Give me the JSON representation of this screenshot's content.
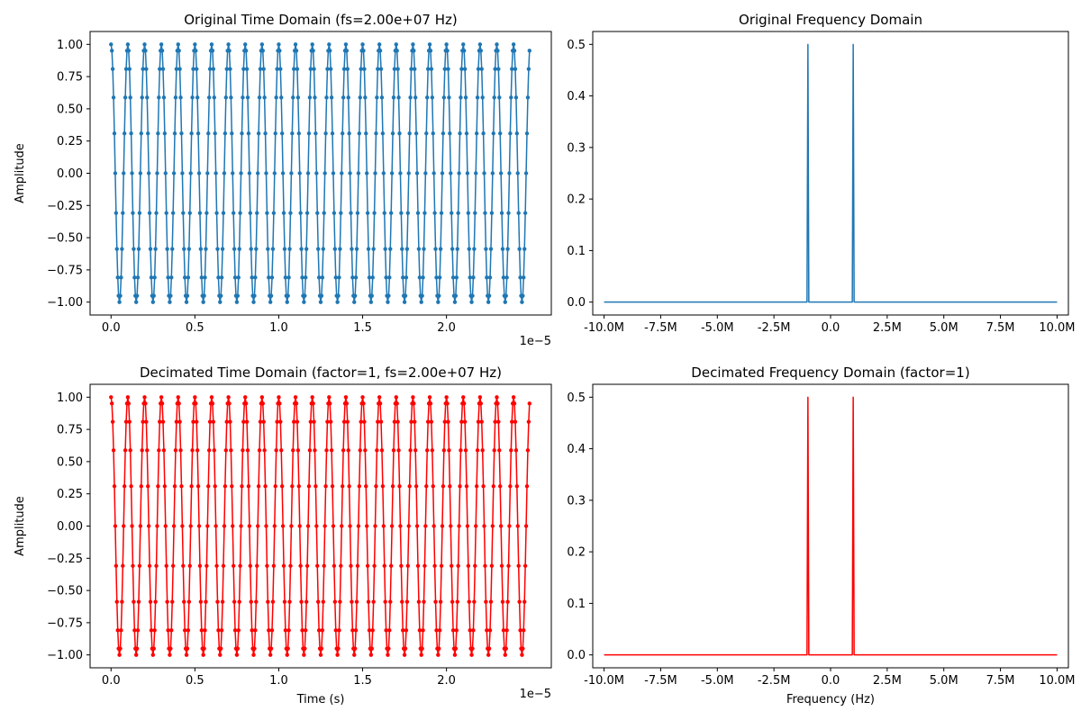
{
  "colors": {
    "original": "#1f77b4",
    "decimated": "#ff0000"
  },
  "chart_data": [
    {
      "id": "original-time",
      "type": "line",
      "title": "Original Time Domain (fs=2.00e+07 Hz)",
      "xlabel": "",
      "ylabel": "Amplitude",
      "x_offset_label": "1e−5",
      "xlim": [
        -0.125,
        2.625
      ],
      "ylim": [
        -1.1,
        1.1
      ],
      "x_ticks": [
        0.0,
        0.5,
        1.0,
        1.5,
        2.0
      ],
      "x_tick_labels": [
        "0.0",
        "0.5",
        "1.0",
        "1.5",
        "2.0"
      ],
      "y_ticks": [
        -1.0,
        -0.75,
        -0.5,
        -0.25,
        0.0,
        0.25,
        0.5,
        0.75,
        1.0
      ],
      "y_tick_labels": [
        "−1.00",
        "−0.75",
        "−0.50",
        "−0.25",
        "0.00",
        "0.25",
        "0.50",
        "0.75",
        "1.00"
      ],
      "grid": false,
      "series": [
        {
          "kind": "sampled-cosine",
          "color_key": "original",
          "markers": true,
          "frequency_hz": 1000000,
          "sample_rate_hz": 20000000,
          "num_samples": 500,
          "amplitude": 1.0,
          "x_scale": 1e-05
        }
      ]
    },
    {
      "id": "original-frequency",
      "type": "line",
      "title": "Original Frequency Domain",
      "xlabel": "",
      "ylabel": "",
      "xlim": [
        -10.5,
        10.5
      ],
      "ylim": [
        -0.025,
        0.525
      ],
      "x_ticks": [
        -10.0,
        -7.5,
        -5.0,
        -2.5,
        0.0,
        2.5,
        5.0,
        7.5,
        10.0
      ],
      "x_tick_labels": [
        "-10.0M",
        "-7.5M",
        "-5.0M",
        "-2.5M",
        "0.0",
        "2.5M",
        "5.0M",
        "7.5M",
        "10.0M"
      ],
      "y_ticks": [
        0.0,
        0.1,
        0.2,
        0.3,
        0.4,
        0.5
      ],
      "y_tick_labels": [
        "0.0",
        "0.1",
        "0.2",
        "0.3",
        "0.4",
        "0.5"
      ],
      "grid": false,
      "series": [
        {
          "kind": "spectrum",
          "color_key": "original",
          "markers": false,
          "x": [
            -10.0,
            -1.04,
            -1.0,
            -0.96,
            0.96,
            1.0,
            1.04,
            10.0
          ],
          "y": [
            0.0,
            0.0,
            0.5,
            0.0,
            0.0,
            0.5,
            0.0,
            0.0
          ]
        }
      ]
    },
    {
      "id": "decimated-time",
      "type": "line",
      "title": "Decimated Time Domain (factor=1, fs=2.00e+07 Hz)",
      "xlabel": "Time (s)",
      "ylabel": "Amplitude",
      "x_offset_label": "1e−5",
      "xlim": [
        -0.125,
        2.625
      ],
      "ylim": [
        -1.1,
        1.1
      ],
      "x_ticks": [
        0.0,
        0.5,
        1.0,
        1.5,
        2.0
      ],
      "x_tick_labels": [
        "0.0",
        "0.5",
        "1.0",
        "1.5",
        "2.0"
      ],
      "y_ticks": [
        -1.0,
        -0.75,
        -0.5,
        -0.25,
        0.0,
        0.25,
        0.5,
        0.75,
        1.0
      ],
      "y_tick_labels": [
        "−1.00",
        "−0.75",
        "−0.50",
        "−0.25",
        "0.00",
        "0.25",
        "0.50",
        "0.75",
        "1.00"
      ],
      "grid": false,
      "series": [
        {
          "kind": "sampled-cosine",
          "color_key": "decimated",
          "markers": true,
          "frequency_hz": 1000000,
          "sample_rate_hz": 20000000,
          "num_samples": 500,
          "amplitude": 1.0,
          "x_scale": 1e-05
        }
      ]
    },
    {
      "id": "decimated-frequency",
      "type": "line",
      "title": "Decimated Frequency Domain (factor=1)",
      "xlabel": "Frequency (Hz)",
      "ylabel": "",
      "xlim": [
        -10.5,
        10.5
      ],
      "ylim": [
        -0.025,
        0.525
      ],
      "x_ticks": [
        -10.0,
        -7.5,
        -5.0,
        -2.5,
        0.0,
        2.5,
        5.0,
        7.5,
        10.0
      ],
      "x_tick_labels": [
        "-10.0M",
        "-7.5M",
        "-5.0M",
        "-2.5M",
        "0.0",
        "2.5M",
        "5.0M",
        "7.5M",
        "10.0M"
      ],
      "y_ticks": [
        0.0,
        0.1,
        0.2,
        0.3,
        0.4,
        0.5
      ],
      "y_tick_labels": [
        "0.0",
        "0.1",
        "0.2",
        "0.3",
        "0.4",
        "0.5"
      ],
      "grid": false,
      "series": [
        {
          "kind": "spectrum",
          "color_key": "decimated",
          "markers": false,
          "x": [
            -10.0,
            -1.04,
            -1.0,
            -0.96,
            0.96,
            1.0,
            1.04,
            10.0
          ],
          "y": [
            0.0,
            0.0,
            0.5,
            0.0,
            0.0,
            0.5,
            0.0,
            0.0
          ]
        }
      ]
    }
  ]
}
